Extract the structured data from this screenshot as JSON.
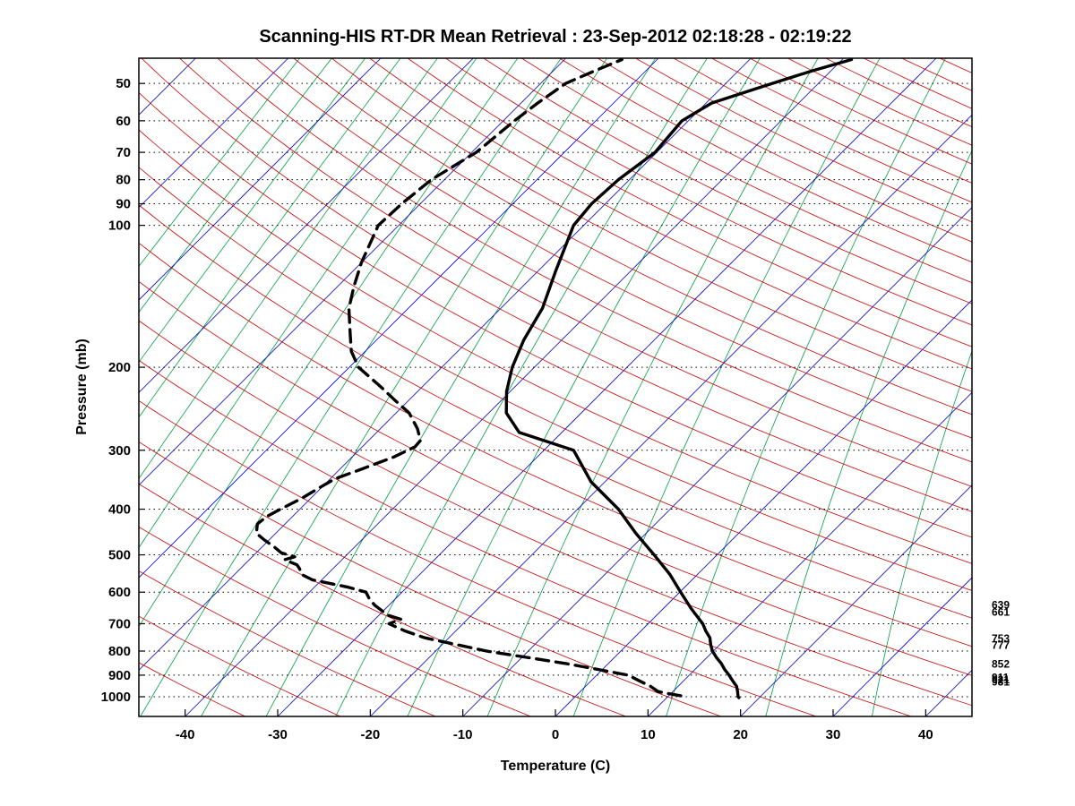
{
  "title": "Scanning-HIS RT-DR Mean Retrieval : 23-Sep-2012 02:18:28 - 02:19:22",
  "axis": {
    "xlabel": "Temperature (C)",
    "ylabel": "Pressure (mb)",
    "x_ticks": [
      -40,
      -30,
      -20,
      -10,
      0,
      10,
      20,
      30,
      40
    ],
    "pressure_ticks": [
      50,
      60,
      70,
      80,
      90,
      100,
      200,
      300,
      400,
      500,
      600,
      700,
      800,
      900,
      1000
    ]
  },
  "right_pressure_labels": [
    639,
    661,
    753,
    777,
    852,
    911,
    921,
    931
  ],
  "colors": {
    "isotherm": "#0000cc",
    "dry_adiabat": "#cc0000",
    "mixing_ratio": "#00a040",
    "gridline": "#000000",
    "profile": "#000000"
  },
  "chart_data": {
    "type": "line",
    "subtype": "skew-t-log-p",
    "title": "Scanning-HIS RT-DR Mean Retrieval : 23-Sep-2012 02:18:28 - 02:19:22",
    "xlabel": "Temperature (C)",
    "ylabel": "Pressure (mb)",
    "x_range_C": [
      -45,
      45
    ],
    "p_range_mb": [
      44.2,
      1101
    ],
    "skew": "45deg_isotherms",
    "grid": "dotted_horizontal_pressure_lines",
    "series": [
      {
        "name": "temperature_C",
        "style": "solid",
        "points_p_T": [
          [
            1005,
            17.8
          ],
          [
            1000,
            17.6
          ],
          [
            975,
            17.0
          ],
          [
            950,
            16.3
          ],
          [
            925,
            15.3
          ],
          [
            900,
            14.3
          ],
          [
            875,
            13.2
          ],
          [
            850,
            12.2
          ],
          [
            825,
            11.0
          ],
          [
            800,
            9.9
          ],
          [
            775,
            9.0
          ],
          [
            750,
            8.2
          ],
          [
            725,
            7.0
          ],
          [
            700,
            5.9
          ],
          [
            650,
            3.0
          ],
          [
            600,
            0.1
          ],
          [
            550,
            -3.0
          ],
          [
            500,
            -6.8
          ],
          [
            450,
            -11.1
          ],
          [
            400,
            -15.6
          ],
          [
            350,
            -21.5
          ],
          [
            300,
            -26.8
          ],
          [
            275,
            -34.6
          ],
          [
            250,
            -38.1
          ],
          [
            225,
            -40.4
          ],
          [
            200,
            -42.4
          ],
          [
            175,
            -44.1
          ],
          [
            150,
            -45.5
          ],
          [
            125,
            -48.1
          ],
          [
            100,
            -51.1
          ],
          [
            90,
            -51.5
          ],
          [
            80,
            -51.2
          ],
          [
            70,
            -50.2
          ],
          [
            60,
            -50.7
          ],
          [
            55,
            -49.4
          ],
          [
            50,
            -45.0
          ],
          [
            47,
            -42.0
          ],
          [
            44.5,
            -39.0
          ]
        ]
      },
      {
        "name": "dewpoint_C",
        "style": "dashed",
        "points_p_T": [
          [
            995,
            11.3
          ],
          [
            988,
            10.2
          ],
          [
            975,
            8.4
          ],
          [
            950,
            7.0
          ],
          [
            925,
            5.2
          ],
          [
            900,
            3.4
          ],
          [
            875,
            -0.5
          ],
          [
            850,
            -4.6
          ],
          [
            825,
            -9.5
          ],
          [
            800,
            -14.5
          ],
          [
            775,
            -18.5
          ],
          [
            750,
            -22.6
          ],
          [
            725,
            -25.5
          ],
          [
            700,
            -28.0
          ],
          [
            685,
            -27.2
          ],
          [
            670,
            -29.2
          ],
          [
            655,
            -30.3
          ],
          [
            640,
            -31.5
          ],
          [
            620,
            -32.8
          ],
          [
            600,
            -33.9
          ],
          [
            585,
            -36.5
          ],
          [
            565,
            -41.0
          ],
          [
            550,
            -42.8
          ],
          [
            535,
            -43.6
          ],
          [
            525,
            -44.3
          ],
          [
            512,
            -46.2
          ],
          [
            505,
            -45.4
          ],
          [
            495,
            -47.3
          ],
          [
            480,
            -48.8
          ],
          [
            465,
            -50.5
          ],
          [
            450,
            -52.1
          ],
          [
            430,
            -53.0
          ],
          [
            415,
            -52.8
          ],
          [
            400,
            -52.1
          ],
          [
            380,
            -51.0
          ],
          [
            360,
            -50.2
          ],
          [
            345,
            -49.5
          ],
          [
            330,
            -47.8
          ],
          [
            310,
            -45.5
          ],
          [
            295,
            -44.3
          ],
          [
            286,
            -44.4
          ],
          [
            270,
            -46.0
          ],
          [
            250,
            -48.6
          ],
          [
            235,
            -51.5
          ],
          [
            220,
            -54.5
          ],
          [
            200,
            -59.0
          ],
          [
            185,
            -61.5
          ],
          [
            170,
            -63.5
          ],
          [
            150,
            -66.4
          ],
          [
            135,
            -68.2
          ],
          [
            120,
            -70.0
          ],
          [
            100,
            -72.2
          ],
          [
            90,
            -72.0
          ],
          [
            80,
            -71.4
          ],
          [
            70,
            -69.5
          ],
          [
            60,
            -68.8
          ],
          [
            55,
            -68.2
          ],
          [
            50,
            -67.3
          ],
          [
            47,
            -65.5
          ],
          [
            44.5,
            -63.8
          ]
        ]
      }
    ],
    "background": {
      "isotherms_C": {
        "from": -120,
        "to": 40,
        "step": 10
      },
      "dry_adiabats_theta_C": {
        "from": -40,
        "to": 330,
        "step": 10
      },
      "mixing_ratio_g_kg": [
        0.0005,
        0.001,
        0.002,
        0.004,
        0.008,
        0.016,
        0.032,
        0.064,
        0.128,
        0.256,
        0.512,
        1,
        2,
        4,
        8,
        16,
        32,
        64
      ],
      "pressure_gridlines_mb": [
        50,
        60,
        70,
        80,
        90,
        100,
        200,
        300,
        400,
        500,
        600,
        700,
        800,
        900,
        1000
      ]
    },
    "annotations_right_mb": [
      639,
      661,
      753,
      777,
      852,
      911,
      921,
      931
    ],
    "legend": "none"
  }
}
